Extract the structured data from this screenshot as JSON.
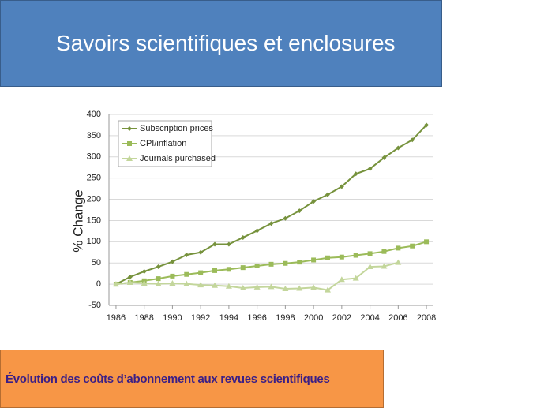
{
  "slide": {
    "title": "Savoirs scientifiques et enclosures",
    "caption": "Évolution des coûts d’abonnement aux revues scientifiques"
  },
  "chart_data": {
    "type": "line",
    "y_label": "% Change",
    "x": [
      1986,
      1987,
      1988,
      1989,
      1990,
      1991,
      1992,
      1993,
      1994,
      1995,
      1996,
      1997,
      1998,
      1999,
      2000,
      2001,
      2002,
      2003,
      2004,
      2005,
      2006,
      2007,
      2008
    ],
    "series": [
      {
        "name": "Subscription prices",
        "color": "#76923c",
        "marker": "diamond",
        "values": [
          0,
          17,
          30,
          41,
          53,
          69,
          75,
          94,
          94,
          110,
          126,
          143,
          155,
          173,
          195,
          211,
          230,
          260,
          272,
          298,
          321,
          340,
          375
        ]
      },
      {
        "name": "CPI/inflation",
        "color": "#9bbb59",
        "marker": "square",
        "values": [
          0,
          4,
          8,
          13,
          19,
          23,
          27,
          32,
          35,
          39,
          43,
          47,
          49,
          52,
          57,
          62,
          64,
          68,
          72,
          77,
          85,
          90,
          100
        ]
      },
      {
        "name": "Journals purchased",
        "color": "#c3d69b",
        "marker": "triangle",
        "values": [
          0,
          4,
          2,
          1,
          2,
          1,
          -2,
          -3,
          -5,
          -9,
          -7,
          -6,
          -11,
          -10,
          -8,
          -14,
          11,
          14,
          41,
          42,
          51,
          null,
          null
        ]
      }
    ],
    "xlim": [
      1985.5,
      2008.5
    ],
    "xticks": [
      1986,
      1988,
      1990,
      1992,
      1994,
      1996,
      1998,
      2000,
      2002,
      2004,
      2006,
      2008
    ],
    "ylim": [
      -50,
      400
    ],
    "yticks": [
      -50,
      0,
      50,
      100,
      150,
      200,
      250,
      300,
      350,
      400
    ],
    "grid": true,
    "legend": "top-left"
  }
}
